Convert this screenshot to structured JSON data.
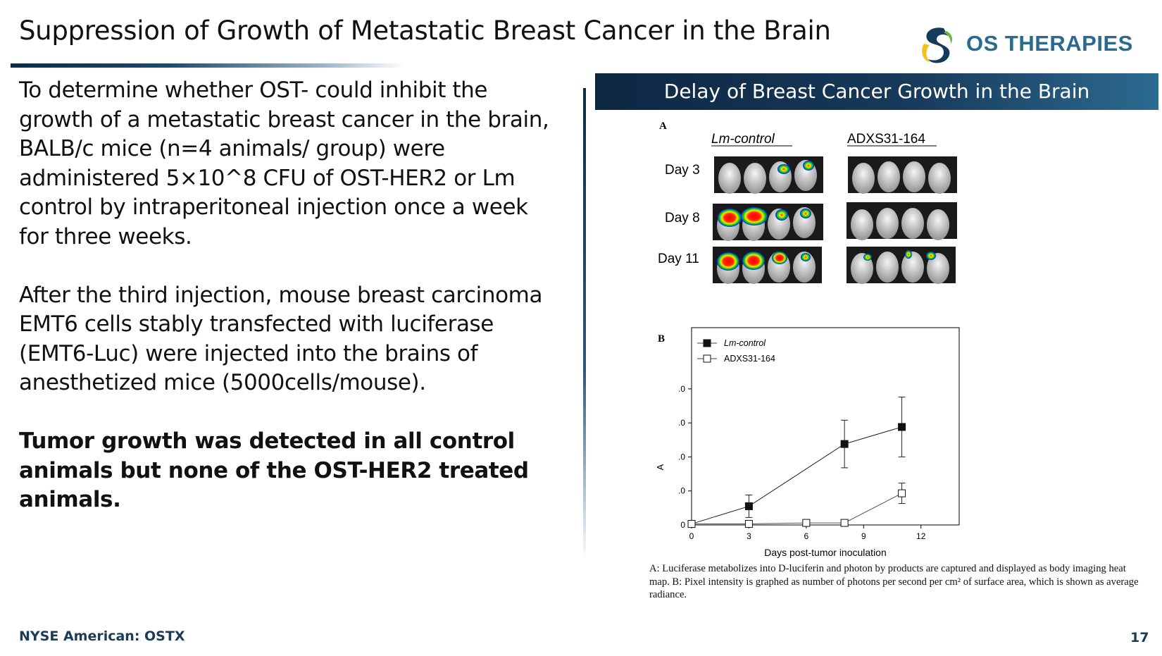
{
  "slide": {
    "title": "Suppression of Growth of Metastatic Breast Cancer in the Brain",
    "logo_text": "OS THERAPIES",
    "paragraph1": "To determine whether OST- could inhibit the growth of a metastatic breast cancer in the brain, BALB/c mice (n=4 animals/ group) were administered 5×10^8 CFU of OST-HER2 or Lm control by intraperitoneal injection once a week for three weeks.",
    "paragraph2": "After the third injection, mouse breast carcinoma EMT6 cells stably transfected with luciferase (EMT6-Luc) were injected into the brains of anesthetized mice (5000cells/mouse).",
    "paragraph3": "Tumor growth was detected in all control animals but none of the OST-HER2 treated animals.",
    "footer_ticker": "NYSE American: OSTX",
    "page_number": "17"
  },
  "figure": {
    "header": "Delay of Breast Cancer Growth in the Brain",
    "panel_a_label": "A",
    "panel_b_label": "B",
    "col_control": "Lm-control",
    "col_treated": "ADXS31-164",
    "row_labels": [
      "Day 3",
      "Day 8",
      "Day 11"
    ],
    "caption": "A: Luciferase metabolizes into D-luciferin and photon by products are captured and displayed as body imaging heat map. B: Pixel intensity is graphed as number of photons per second per cm² of surface area, which is shown as average radiance."
  },
  "colors": {
    "navy": "#0d2742",
    "accent_blue": "#2a6a8e",
    "logo_yellow": "#f2c21b",
    "logo_green": "#6cb33f"
  },
  "chart_data": {
    "type": "line",
    "title": "",
    "xlabel": "Days post-tumor inoculation",
    "ylabel": "A",
    "xlim": [
      0,
      14
    ],
    "ylim": [
      0,
      5.8
    ],
    "xticks": [
      0,
      3,
      6,
      9,
      12
    ],
    "xtick_labels": [
      "0",
      "3",
      "6",
      "9",
      "12"
    ],
    "yticks": [
      0,
      1,
      2,
      3,
      4
    ],
    "ytick_labels": [
      "0",
      ".0",
      ".0",
      ".0",
      ".0"
    ],
    "legend": [
      "Lm-control",
      "ADXS31-164"
    ],
    "legend_position": "top-left",
    "series": [
      {
        "name": "Lm-control",
        "marker": "filled-square",
        "x": [
          0,
          3,
          8,
          11
        ],
        "y": [
          0.03,
          0.55,
          2.38,
          2.88
        ],
        "err": [
          0,
          0.33,
          0.7,
          0.88
        ]
      },
      {
        "name": "ADXS31-164",
        "marker": "open-square",
        "x": [
          0,
          3,
          6,
          8,
          11
        ],
        "y": [
          0.03,
          0.03,
          0.06,
          0.06,
          0.93
        ],
        "err": [
          0,
          0,
          0,
          0,
          0.3
        ]
      }
    ]
  }
}
